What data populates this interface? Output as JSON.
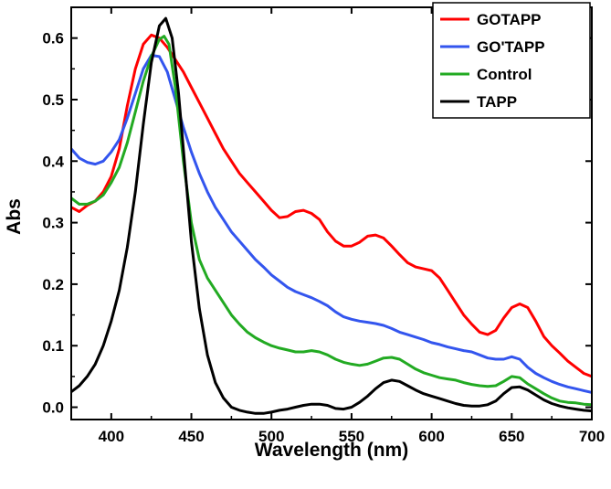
{
  "chart_data": {
    "type": "line",
    "title": "",
    "xlabel": "Wavelength (nm)",
    "ylabel": "Abs",
    "xlim": [
      375,
      700
    ],
    "ylim": [
      -0.02,
      0.65
    ],
    "x_ticks": [
      400,
      450,
      500,
      550,
      600,
      650,
      700
    ],
    "y_ticks": [
      0.0,
      0.1,
      0.2,
      0.3,
      0.4,
      0.5,
      0.6
    ],
    "grid": false,
    "legend_position": "top-right",
    "series": [
      {
        "name": "GOTAPP",
        "color": "#ff0000",
        "points": [
          [
            375,
            0.325
          ],
          [
            380,
            0.318
          ],
          [
            385,
            0.328
          ],
          [
            390,
            0.335
          ],
          [
            395,
            0.35
          ],
          [
            400,
            0.375
          ],
          [
            405,
            0.42
          ],
          [
            410,
            0.49
          ],
          [
            415,
            0.55
          ],
          [
            420,
            0.59
          ],
          [
            425,
            0.605
          ],
          [
            430,
            0.6
          ],
          [
            435,
            0.585
          ],
          [
            440,
            0.565
          ],
          [
            445,
            0.545
          ],
          [
            450,
            0.52
          ],
          [
            455,
            0.495
          ],
          [
            460,
            0.47
          ],
          [
            465,
            0.445
          ],
          [
            470,
            0.42
          ],
          [
            475,
            0.4
          ],
          [
            480,
            0.38
          ],
          [
            485,
            0.365
          ],
          [
            490,
            0.35
          ],
          [
            495,
            0.335
          ],
          [
            500,
            0.32
          ],
          [
            505,
            0.308
          ],
          [
            510,
            0.31
          ],
          [
            515,
            0.318
          ],
          [
            520,
            0.32
          ],
          [
            525,
            0.315
          ],
          [
            530,
            0.305
          ],
          [
            535,
            0.285
          ],
          [
            540,
            0.27
          ],
          [
            545,
            0.262
          ],
          [
            550,
            0.262
          ],
          [
            555,
            0.268
          ],
          [
            560,
            0.278
          ],
          [
            565,
            0.28
          ],
          [
            570,
            0.275
          ],
          [
            575,
            0.262
          ],
          [
            580,
            0.248
          ],
          [
            585,
            0.235
          ],
          [
            590,
            0.228
          ],
          [
            595,
            0.225
          ],
          [
            600,
            0.222
          ],
          [
            605,
            0.21
          ],
          [
            610,
            0.19
          ],
          [
            615,
            0.17
          ],
          [
            620,
            0.15
          ],
          [
            625,
            0.135
          ],
          [
            630,
            0.122
          ],
          [
            635,
            0.118
          ],
          [
            640,
            0.125
          ],
          [
            645,
            0.145
          ],
          [
            650,
            0.162
          ],
          [
            655,
            0.168
          ],
          [
            660,
            0.162
          ],
          [
            665,
            0.14
          ],
          [
            670,
            0.115
          ],
          [
            675,
            0.1
          ],
          [
            680,
            0.088
          ],
          [
            685,
            0.075
          ],
          [
            690,
            0.065
          ],
          [
            695,
            0.055
          ],
          [
            700,
            0.05
          ]
        ]
      },
      {
        "name": "GO'TAPP",
        "color": "#3355ee",
        "points": [
          [
            375,
            0.42
          ],
          [
            380,
            0.405
          ],
          [
            385,
            0.398
          ],
          [
            390,
            0.395
          ],
          [
            395,
            0.4
          ],
          [
            400,
            0.415
          ],
          [
            405,
            0.435
          ],
          [
            410,
            0.47
          ],
          [
            415,
            0.51
          ],
          [
            420,
            0.55
          ],
          [
            425,
            0.572
          ],
          [
            430,
            0.57
          ],
          [
            435,
            0.545
          ],
          [
            440,
            0.5
          ],
          [
            445,
            0.455
          ],
          [
            450,
            0.415
          ],
          [
            455,
            0.38
          ],
          [
            460,
            0.35
          ],
          [
            465,
            0.325
          ],
          [
            470,
            0.305
          ],
          [
            475,
            0.285
          ],
          [
            480,
            0.27
          ],
          [
            485,
            0.255
          ],
          [
            490,
            0.24
          ],
          [
            495,
            0.228
          ],
          [
            500,
            0.215
          ],
          [
            505,
            0.205
          ],
          [
            510,
            0.195
          ],
          [
            515,
            0.188
          ],
          [
            520,
            0.183
          ],
          [
            525,
            0.178
          ],
          [
            530,
            0.172
          ],
          [
            535,
            0.165
          ],
          [
            540,
            0.155
          ],
          [
            545,
            0.147
          ],
          [
            550,
            0.143
          ],
          [
            555,
            0.14
          ],
          [
            560,
            0.138
          ],
          [
            565,
            0.136
          ],
          [
            570,
            0.133
          ],
          [
            575,
            0.128
          ],
          [
            580,
            0.122
          ],
          [
            585,
            0.118
          ],
          [
            590,
            0.114
          ],
          [
            595,
            0.11
          ],
          [
            600,
            0.105
          ],
          [
            605,
            0.102
          ],
          [
            610,
            0.098
          ],
          [
            615,
            0.095
          ],
          [
            620,
            0.092
          ],
          [
            625,
            0.09
          ],
          [
            630,
            0.085
          ],
          [
            635,
            0.08
          ],
          [
            640,
            0.078
          ],
          [
            645,
            0.078
          ],
          [
            650,
            0.082
          ],
          [
            655,
            0.078
          ],
          [
            660,
            0.065
          ],
          [
            665,
            0.055
          ],
          [
            670,
            0.048
          ],
          [
            675,
            0.042
          ],
          [
            680,
            0.037
          ],
          [
            685,
            0.033
          ],
          [
            690,
            0.03
          ],
          [
            695,
            0.027
          ],
          [
            700,
            0.024
          ]
        ]
      },
      {
        "name": "Control",
        "color": "#22aa22",
        "points": [
          [
            375,
            0.34
          ],
          [
            380,
            0.33
          ],
          [
            385,
            0.33
          ],
          [
            390,
            0.335
          ],
          [
            395,
            0.345
          ],
          [
            400,
            0.365
          ],
          [
            405,
            0.39
          ],
          [
            410,
            0.43
          ],
          [
            415,
            0.48
          ],
          [
            420,
            0.53
          ],
          [
            425,
            0.57
          ],
          [
            430,
            0.598
          ],
          [
            433,
            0.603
          ],
          [
            436,
            0.59
          ],
          [
            440,
            0.52
          ],
          [
            445,
            0.4
          ],
          [
            450,
            0.3
          ],
          [
            455,
            0.24
          ],
          [
            460,
            0.21
          ],
          [
            465,
            0.19
          ],
          [
            470,
            0.17
          ],
          [
            475,
            0.15
          ],
          [
            480,
            0.135
          ],
          [
            485,
            0.122
          ],
          [
            490,
            0.113
          ],
          [
            495,
            0.106
          ],
          [
            500,
            0.1
          ],
          [
            505,
            0.096
          ],
          [
            510,
            0.093
          ],
          [
            515,
            0.09
          ],
          [
            520,
            0.09
          ],
          [
            525,
            0.092
          ],
          [
            530,
            0.09
          ],
          [
            535,
            0.085
          ],
          [
            540,
            0.078
          ],
          [
            545,
            0.073
          ],
          [
            550,
            0.07
          ],
          [
            555,
            0.068
          ],
          [
            560,
            0.07
          ],
          [
            565,
            0.075
          ],
          [
            570,
            0.08
          ],
          [
            575,
            0.081
          ],
          [
            580,
            0.078
          ],
          [
            585,
            0.07
          ],
          [
            590,
            0.062
          ],
          [
            595,
            0.056
          ],
          [
            600,
            0.052
          ],
          [
            605,
            0.048
          ],
          [
            610,
            0.046
          ],
          [
            615,
            0.044
          ],
          [
            620,
            0.04
          ],
          [
            625,
            0.037
          ],
          [
            630,
            0.035
          ],
          [
            635,
            0.034
          ],
          [
            640,
            0.035
          ],
          [
            645,
            0.042
          ],
          [
            650,
            0.05
          ],
          [
            655,
            0.048
          ],
          [
            660,
            0.038
          ],
          [
            665,
            0.03
          ],
          [
            670,
            0.022
          ],
          [
            675,
            0.015
          ],
          [
            680,
            0.01
          ],
          [
            685,
            0.008
          ],
          [
            690,
            0.007
          ],
          [
            695,
            0.005
          ],
          [
            700,
            0.004
          ]
        ]
      },
      {
        "name": "TAPP",
        "color": "#000000",
        "points": [
          [
            375,
            0.025
          ],
          [
            380,
            0.035
          ],
          [
            385,
            0.05
          ],
          [
            390,
            0.07
          ],
          [
            395,
            0.1
          ],
          [
            400,
            0.14
          ],
          [
            405,
            0.19
          ],
          [
            410,
            0.26
          ],
          [
            415,
            0.35
          ],
          [
            420,
            0.46
          ],
          [
            425,
            0.56
          ],
          [
            430,
            0.62
          ],
          [
            434,
            0.632
          ],
          [
            438,
            0.6
          ],
          [
            442,
            0.51
          ],
          [
            446,
            0.39
          ],
          [
            450,
            0.27
          ],
          [
            455,
            0.16
          ],
          [
            460,
            0.085
          ],
          [
            465,
            0.04
          ],
          [
            470,
            0.015
          ],
          [
            475,
            0.0
          ],
          [
            480,
            -0.005
          ],
          [
            485,
            -0.008
          ],
          [
            490,
            -0.01
          ],
          [
            495,
            -0.01
          ],
          [
            500,
            -0.008
          ],
          [
            505,
            -0.005
          ],
          [
            510,
            -0.003
          ],
          [
            515,
            0.0
          ],
          [
            520,
            0.003
          ],
          [
            525,
            0.005
          ],
          [
            530,
            0.005
          ],
          [
            535,
            0.003
          ],
          [
            540,
            -0.002
          ],
          [
            545,
            -0.003
          ],
          [
            550,
            0.0
          ],
          [
            555,
            0.008
          ],
          [
            560,
            0.018
          ],
          [
            565,
            0.03
          ],
          [
            570,
            0.04
          ],
          [
            575,
            0.044
          ],
          [
            580,
            0.042
          ],
          [
            585,
            0.035
          ],
          [
            590,
            0.028
          ],
          [
            595,
            0.022
          ],
          [
            600,
            0.018
          ],
          [
            605,
            0.014
          ],
          [
            610,
            0.01
          ],
          [
            615,
            0.006
          ],
          [
            620,
            0.003
          ],
          [
            625,
            0.002
          ],
          [
            630,
            0.002
          ],
          [
            635,
            0.004
          ],
          [
            640,
            0.01
          ],
          [
            645,
            0.022
          ],
          [
            650,
            0.032
          ],
          [
            655,
            0.033
          ],
          [
            660,
            0.028
          ],
          [
            665,
            0.02
          ],
          [
            670,
            0.012
          ],
          [
            675,
            0.006
          ],
          [
            680,
            0.002
          ],
          [
            685,
            -0.001
          ],
          [
            690,
            -0.003
          ],
          [
            695,
            -0.005
          ],
          [
            700,
            -0.006
          ]
        ]
      }
    ]
  }
}
